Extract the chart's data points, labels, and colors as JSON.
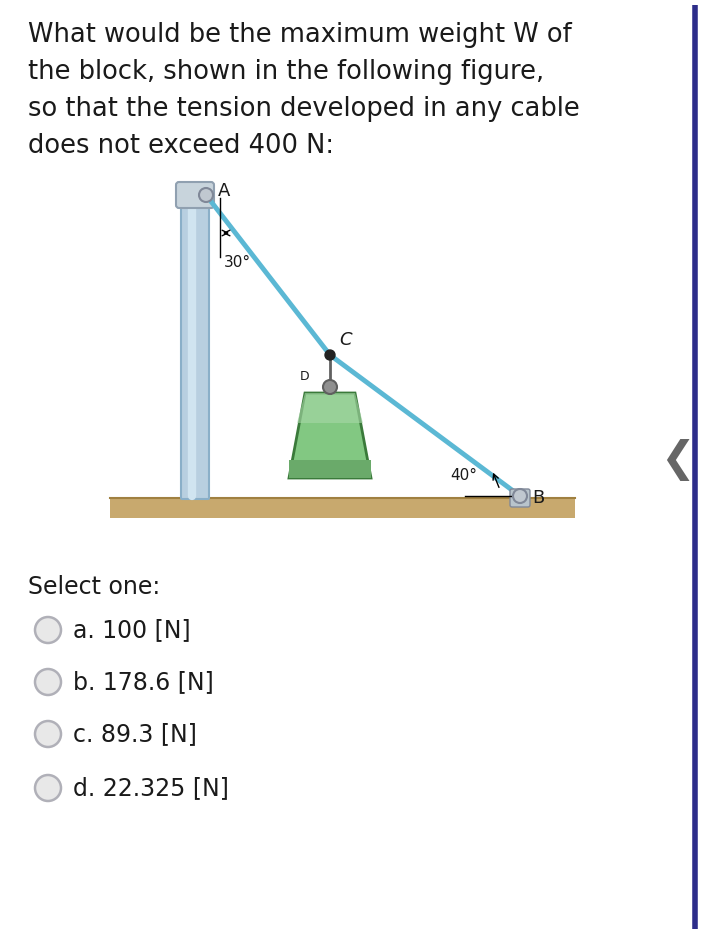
{
  "question_text": "What would be the maximum weight W of\nthe block, shown in the following figure,\nso that the tension developed in any cable\ndoes not exceed 400 N:",
  "select_text": "Select one:",
  "options": [
    "a. 100 [N]",
    "b. 178.6 [N]",
    "c. 89.3 [N]",
    "d. 22.325 [N]"
  ],
  "bg_color": "#ffffff",
  "border_color": "#2d2d8a",
  "text_color": "#1a1a1a",
  "pole_color_light": "#b8cfe0",
  "pole_color_dark": "#8aafc8",
  "pole_color_mid": "#d0e4f0",
  "cable_color": "#5bb8d4",
  "ground_color_top": "#c8a96e",
  "ground_color_bot": "#b89858",
  "block_fill": "#82c882",
  "block_edge": "#3a7a3a",
  "block_shade": "#a8d8a8",
  "pin_fill": "#c0c8d0",
  "pin_edge": "#808898",
  "angle_A_label": "30°",
  "angle_B_label": "40°",
  "label_A": "A",
  "label_B": "B",
  "label_C": "C",
  "label_D": "D"
}
